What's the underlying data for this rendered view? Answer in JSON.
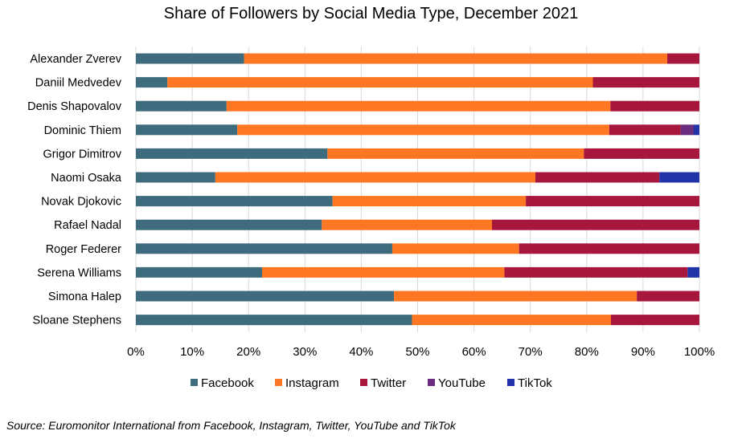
{
  "chart_data": {
    "type": "bar",
    "orientation": "horizontal",
    "stacked": "percent",
    "title": "Share of Followers by Social Media Type, December 2021",
    "categories": [
      "Alexander Zverev",
      "Daniil Medvedev",
      "Denis Shapovalov",
      "Dominic Thiem",
      "Grigor Dimitrov",
      "Naomi Osaka",
      "Novak Djokovic",
      "Rafael Nadal",
      "Roger Federer",
      "Serena Williams",
      "Simona Halep",
      "Sloane Stephens"
    ],
    "series": [
      {
        "name": "Facebook",
        "color": "#3f6b7e",
        "values": [
          19.2,
          5.6,
          16.1,
          18.0,
          34.0,
          14.1,
          34.9,
          33.0,
          45.5,
          22.4,
          45.8,
          49.0
        ]
      },
      {
        "name": "Instagram",
        "color": "#ff7722",
        "values": [
          75.1,
          75.5,
          68.1,
          66.0,
          45.5,
          56.8,
          34.3,
          30.2,
          22.5,
          43.0,
          43.1,
          35.3
        ]
      },
      {
        "name": "Twitter",
        "color": "#a6163d",
        "values": [
          5.7,
          18.9,
          15.8,
          12.7,
          20.5,
          22.0,
          30.8,
          36.8,
          32.0,
          32.5,
          11.1,
          15.7
        ]
      },
      {
        "name": "YouTube",
        "color": "#6a2c7f",
        "values": [
          0,
          0,
          0,
          2.3,
          0,
          0,
          0,
          0,
          0,
          0,
          0,
          0
        ]
      },
      {
        "name": "TikTok",
        "color": "#2233aa",
        "values": [
          0,
          0,
          0,
          1.0,
          0,
          7.1,
          0,
          0,
          0,
          2.1,
          0,
          0
        ]
      }
    ],
    "x_ticks": [
      "0%",
      "10%",
      "20%",
      "30%",
      "40%",
      "50%",
      "60%",
      "70%",
      "80%",
      "90%",
      "100%"
    ],
    "xlim": [
      0,
      100
    ],
    "grid": "vertical",
    "legend_position": "bottom"
  },
  "source": "Source: Euromonitor International from Facebook, Instagram, Twitter, YouTube and TikTok"
}
